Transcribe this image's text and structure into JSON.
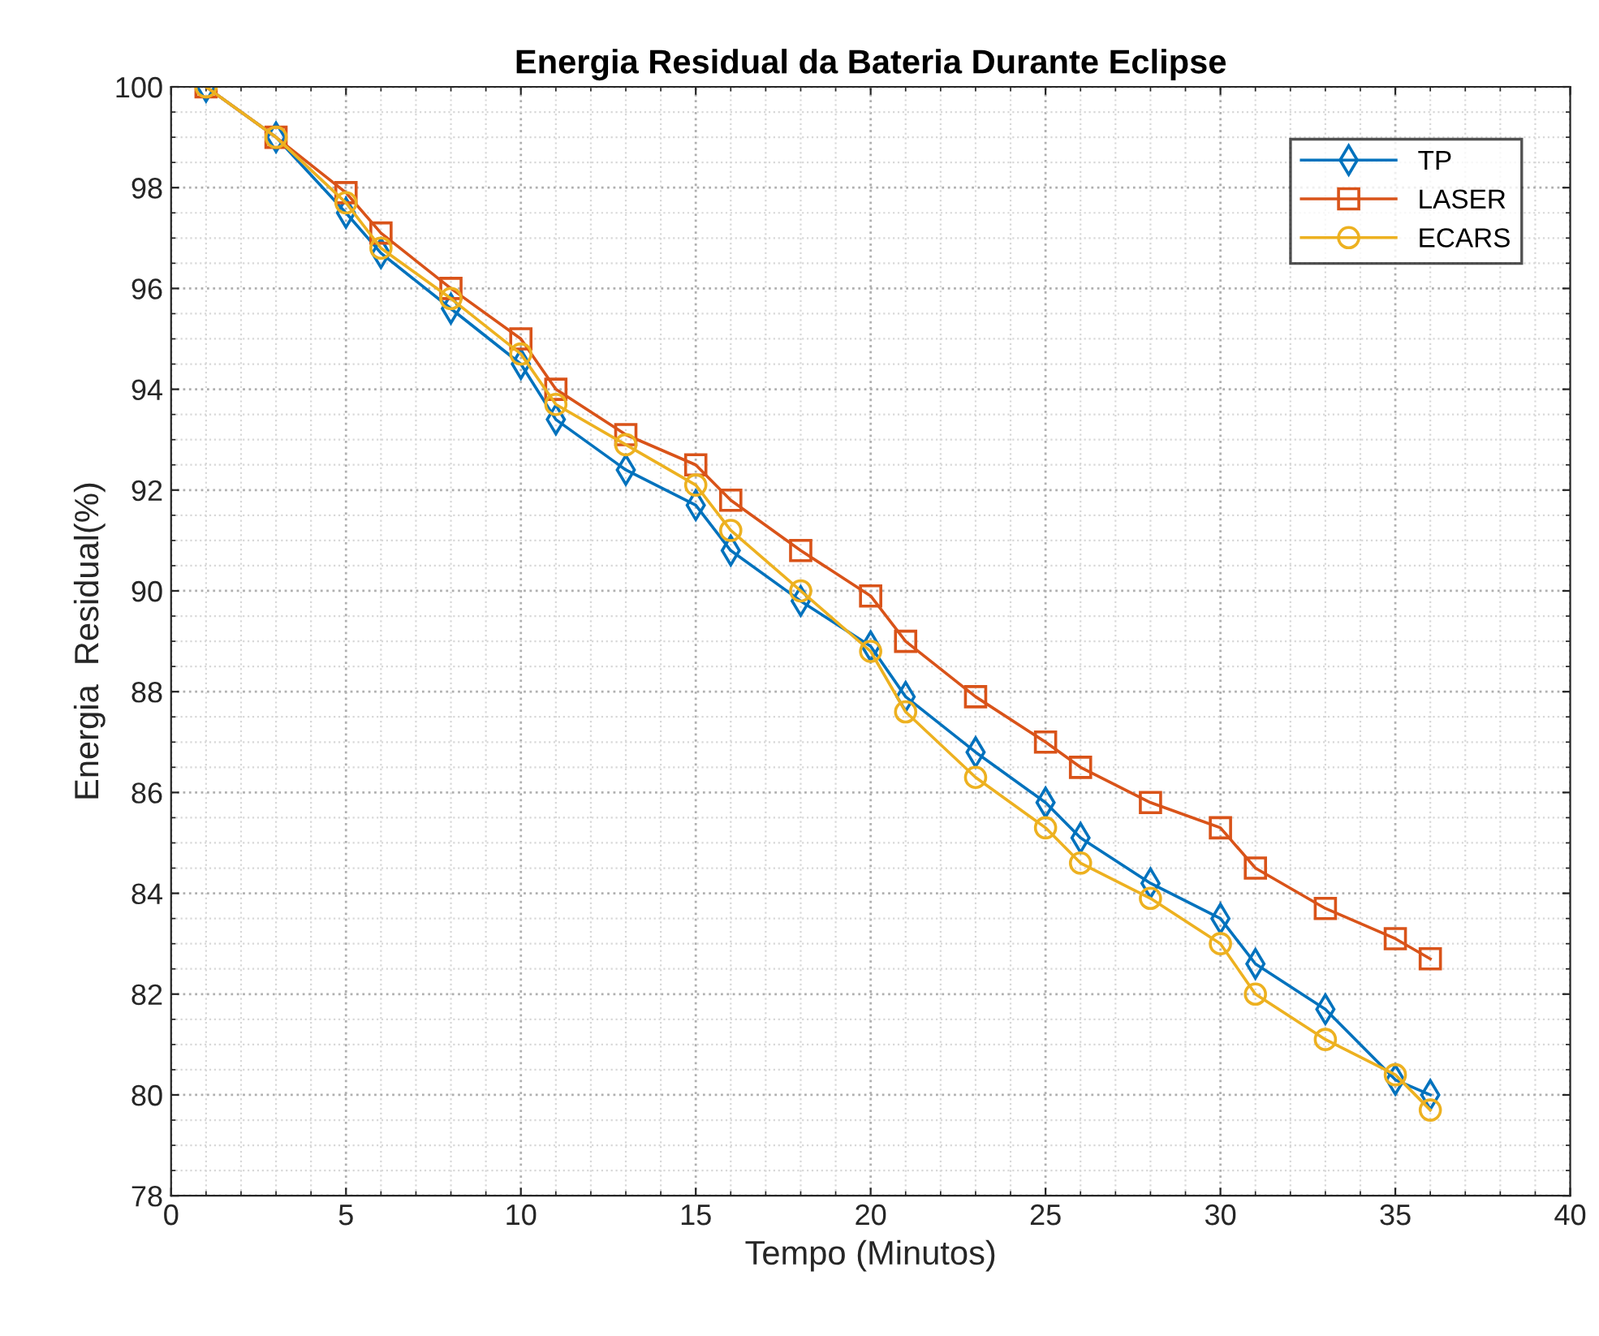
{
  "chart_data": {
    "type": "line",
    "title": "Energia Residual da Bateria Durante Eclipse",
    "xlabel": "Tempo (Minutos)",
    "ylabel": "Energia  Residual(%)",
    "x": [
      1,
      3,
      5,
      6,
      8,
      10,
      11,
      13,
      15,
      16,
      18,
      20,
      21,
      23,
      25,
      26,
      28,
      30,
      31,
      33,
      35,
      36
    ],
    "series": [
      {
        "name": "TP",
        "color": "#0072bd",
        "marker": "diamond",
        "values": [
          100,
          99.0,
          97.5,
          96.7,
          95.6,
          94.5,
          93.4,
          92.4,
          91.7,
          90.8,
          89.8,
          88.9,
          87.9,
          86.8,
          85.8,
          85.1,
          84.2,
          83.5,
          82.6,
          81.7,
          80.3,
          80.0
        ]
      },
      {
        "name": "LASER",
        "color": "#d95319",
        "marker": "square",
        "values": [
          100,
          99.0,
          97.9,
          97.1,
          96.0,
          95.0,
          94.0,
          93.1,
          92.5,
          91.8,
          90.8,
          89.9,
          89.0,
          87.9,
          87.0,
          86.5,
          85.8,
          85.3,
          84.5,
          83.7,
          83.1,
          82.7
        ]
      },
      {
        "name": "ECARS",
        "color": "#edb120",
        "marker": "circle",
        "values": [
          100,
          99.0,
          97.7,
          96.8,
          95.8,
          94.7,
          93.7,
          92.9,
          92.1,
          91.2,
          90.0,
          88.8,
          87.6,
          86.3,
          85.3,
          84.6,
          83.9,
          83.0,
          82.0,
          81.1,
          80.4,
          79.7
        ]
      }
    ],
    "xlim": [
      0,
      40
    ],
    "xticks": [
      0,
      5,
      10,
      15,
      20,
      25,
      30,
      35,
      40
    ],
    "ylim": [
      78,
      100
    ],
    "yticks": [
      78,
      80,
      82,
      84,
      86,
      88,
      90,
      92,
      94,
      96,
      98,
      100
    ],
    "grid": true,
    "legend": "top right",
    "line_style": "solid"
  }
}
